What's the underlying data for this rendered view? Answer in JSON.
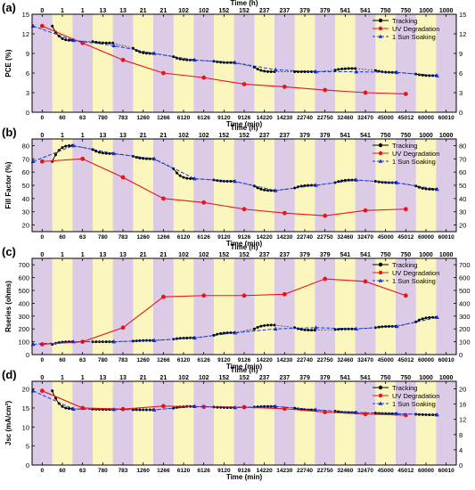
{
  "figure": {
    "top_axis_label": "Time (h)",
    "bottom_axis_label": "Time (min)",
    "colors": {
      "yellow_band": "#fbf6bd",
      "purple_band": "#dccbe6",
      "tracking": "#000000",
      "uv_degradation": "#e8141b",
      "sun_soaking": "#1434d8"
    },
    "top_ticks": [
      "0",
      "1",
      "1",
      "13",
      "13",
      "21",
      "21",
      "102",
      "102",
      "152",
      "152",
      "237",
      "237",
      "379",
      "379",
      "541",
      "541",
      "750",
      "750",
      "1000",
      "1000"
    ],
    "bottom_ticks": [
      "0",
      "60",
      "63",
      "780",
      "783",
      "1260",
      "1266",
      "6120",
      "6126",
      "9120",
      "9126",
      "14220",
      "14230",
      "22740",
      "22750",
      "32460",
      "32470",
      "45000",
      "45012",
      "60000",
      "60010"
    ]
  },
  "chart_data": [
    {
      "panel_label": "(a)",
      "type": "line",
      "ylabel": "PCE (%)",
      "ylim": [
        0,
        15
      ],
      "yticks": [
        0,
        3,
        6,
        9,
        12,
        15
      ],
      "legend_position": "top-right",
      "series": [
        {
          "name": "Tracking",
          "values": [
            13.2,
            11.0,
            10.6,
            9.0,
            8.0,
            7.6,
            6.2,
            6.2,
            6.7,
            6.1,
            5.6
          ]
        },
        {
          "name": "UV Degradation",
          "values": [
            13.2,
            10.6,
            8.0,
            6.0,
            5.3,
            4.3,
            3.9,
            3.4,
            3.0,
            2.8
          ]
        },
        {
          "name": "1 Sun Soaking",
          "values": [
            13.2,
            11.0,
            10.2,
            9.0,
            8.0,
            7.6,
            6.5,
            6.2,
            6.2,
            6.1,
            5.6
          ]
        }
      ]
    },
    {
      "panel_label": "(b)",
      "type": "line",
      "ylabel": "Fill Factor (%)",
      "ylim": [
        15,
        85
      ],
      "yticks": [
        20,
        30,
        40,
        50,
        60,
        70,
        80
      ],
      "legend_position": "top-right",
      "series": [
        {
          "name": "Tracking",
          "values": [
            68,
            80,
            74,
            70,
            55,
            53,
            46,
            50,
            54,
            52,
            47
          ]
        },
        {
          "name": "UV Degradation",
          "values": [
            68,
            70,
            56,
            40,
            37,
            32,
            29,
            27,
            31,
            32
          ]
        },
        {
          "name": "1 Sun Soaking",
          "values": [
            68,
            80,
            74,
            70,
            55,
            53,
            46,
            50,
            54,
            52,
            47
          ]
        }
      ]
    },
    {
      "panel_label": "(c)",
      "type": "line",
      "ylabel": "Rseries (ohms)",
      "ylim": [
        0,
        750
      ],
      "yticks": [
        0,
        100,
        200,
        300,
        400,
        500,
        600,
        700
      ],
      "legend_position": "top-right",
      "series": [
        {
          "name": "Tracking",
          "values": [
            80,
            100,
            100,
            110,
            130,
            170,
            230,
            190,
            200,
            220,
            290
          ]
        },
        {
          "name": "UV Degradation",
          "values": [
            80,
            100,
            210,
            450,
            460,
            460,
            470,
            590,
            570,
            460
          ]
        },
        {
          "name": "1 Sun Soaking",
          "values": [
            80,
            100,
            100,
            110,
            130,
            170,
            200,
            210,
            200,
            220,
            290
          ]
        }
      ]
    },
    {
      "panel_label": "(d)",
      "type": "line",
      "ylabel": "Jsc (mA/cm²)",
      "ylim": [
        0,
        22
      ],
      "yticks": [
        0,
        5,
        10,
        15,
        20
      ],
      "right_yticks": [
        0,
        4,
        8,
        12,
        16,
        20
      ],
      "legend_position": "top-right",
      "series": [
        {
          "name": "Tracking",
          "values": [
            19.5,
            14.8,
            14.6,
            14.5,
            15.4,
            15.1,
            15.4,
            14.5,
            13.8,
            13.5,
            13.2
          ]
        },
        {
          "name": "UV Degradation",
          "values": [
            19.5,
            15.0,
            14.7,
            15.5,
            15.3,
            15.2,
            14.8,
            13.9,
            13.4,
            13.1
          ]
        },
        {
          "name": "1 Sun Soaking",
          "values": [
            19.5,
            14.7,
            14.6,
            14.5,
            15.4,
            15.1,
            15.4,
            14.5,
            13.8,
            13.5,
            13.2
          ]
        }
      ]
    }
  ]
}
